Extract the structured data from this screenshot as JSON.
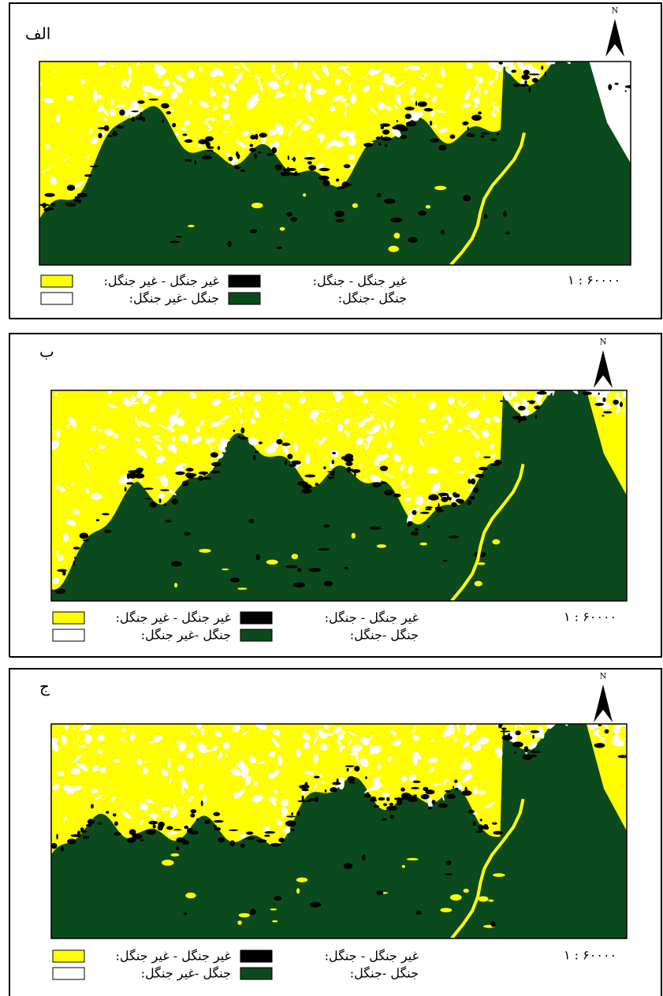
{
  "panels": [
    {
      "label": "الف",
      "north": "N",
      "scale": "۱ : ۶۰۰۰۰",
      "legend": [
        {
          "text": "غیر جنگل - غیر جنگل:",
          "color": "#ffff00"
        },
        {
          "text": "غیر جنگل - جنگل:",
          "color": "#000000"
        },
        {
          "text": "جنگل -غیر جنگل:",
          "color": "#ffffff"
        },
        {
          "text": "جنگل -جنگل:",
          "color": "#0b4a1c"
        }
      ]
    },
    {
      "label": "ب",
      "north": "N",
      "scale": "۱ : ۶۰۰۰۰",
      "legend": [
        {
          "text": "غیر جنگل - غیر جنگل:",
          "color": "#ffff00"
        },
        {
          "text": "غیر جنگل - جنگل:",
          "color": "#000000"
        },
        {
          "text": "جنگل -غیر جنگل:",
          "color": "#ffffff"
        },
        {
          "text": "جنگل -جنگل:",
          "color": "#0b4a1c"
        }
      ]
    },
    {
      "label": "ج",
      "north": "N",
      "scale": "۱ : ۶۰۰۰۰",
      "legend": [
        {
          "text": "غیر جنگل - غیر جنگل:",
          "color": "#ffff00"
        },
        {
          "text": "غیر جنگل - جنگل:",
          "color": "#000000"
        },
        {
          "text": "جنگل -غیر جنگل:",
          "color": "#ffffff"
        },
        {
          "text": "جنگل -جنگل:",
          "color": "#0b4a1c"
        }
      ]
    }
  ]
}
